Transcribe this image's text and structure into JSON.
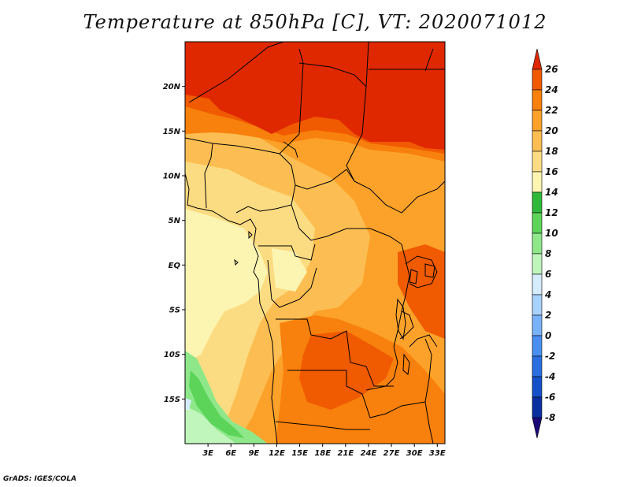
{
  "title": "Temperature at 850hPa [C], VT: 2020071012",
  "credit": "GrADS: IGES/COLA",
  "map": {
    "lon_range": [
      0,
      34
    ],
    "lat_range": [
      -20,
      25
    ],
    "lat_labels": [
      {
        "lat": 20,
        "text": "20N"
      },
      {
        "lat": 15,
        "text": "15N"
      },
      {
        "lat": 10,
        "text": "10N"
      },
      {
        "lat": 5,
        "text": "5N"
      },
      {
        "lat": 0,
        "text": "EQ"
      },
      {
        "lat": -5,
        "text": "5S"
      },
      {
        "lat": -10,
        "text": "10S"
      },
      {
        "lat": -15,
        "text": "15S"
      }
    ],
    "lon_labels": [
      {
        "lon": 3,
        "text": "3E"
      },
      {
        "lon": 6,
        "text": "6E"
      },
      {
        "lon": 9,
        "text": "9E"
      },
      {
        "lon": 12,
        "text": "12E"
      },
      {
        "lon": 15,
        "text": "15E"
      },
      {
        "lon": 18,
        "text": "18E"
      },
      {
        "lon": 21,
        "text": "21E"
      },
      {
        "lon": 24,
        "text": "24E"
      },
      {
        "lon": 27,
        "text": "27E"
      },
      {
        "lon": 30,
        "text": "30E"
      },
      {
        "lon": 33,
        "text": "33E"
      }
    ]
  },
  "colorbar": {
    "colors": [
      "#1a0a78",
      "#0a2fa0",
      "#1450c8",
      "#2a6ee0",
      "#4a8ef0",
      "#78b2fa",
      "#a8d2fc",
      "#d4ecfc",
      "#c0f5bc",
      "#8ee88a",
      "#5cd45a",
      "#30b83a",
      "#fcf5b2",
      "#fcdc82",
      "#fcbe52",
      "#fca22a",
      "#f8800c",
      "#f05a00",
      "#e02800"
    ],
    "labels": [
      "26",
      "24",
      "22",
      "20",
      "18",
      "16",
      "14",
      "12",
      "10",
      "8",
      "6",
      "4",
      "2",
      "0",
      "-2",
      "-4",
      "-6",
      "-8"
    ]
  }
}
